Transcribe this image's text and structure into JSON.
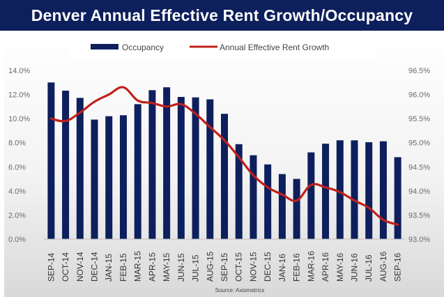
{
  "title": "Denver Annual Effective Rent Growth/Occupancy",
  "legend": {
    "occupancy_label": "Occupancy",
    "rent_label": "Annual Effective Rent Growth"
  },
  "source": "Source: Axiometrics",
  "colors": {
    "title_bg": "#0d1f5c",
    "bar": "#0d1f5c",
    "line": "#c0201b"
  },
  "chart_data": {
    "type": "bar+line",
    "title": "Denver Annual Effective Rent Growth/Occupancy",
    "categories": [
      "SEP-14",
      "OCT-14",
      "NOV-14",
      "DEC-14",
      "JAN-15",
      "FEB-15",
      "MAR-15",
      "APR-15",
      "MAY-15",
      "JUN-15",
      "JUL-15",
      "AUG-15",
      "SEP-15",
      "OCT-15",
      "NOV-15",
      "DEC-15",
      "JAN-16",
      "FEB-16",
      "MAR-16",
      "APR-16",
      "MAY-16",
      "JUN-16",
      "JUL-16",
      "AUG-16",
      "SEP-16"
    ],
    "series": [
      {
        "name": "Occupancy",
        "type": "bar",
        "axis": "right",
        "values": [
          96.25,
          96.08,
          95.93,
          95.48,
          95.55,
          95.57,
          95.8,
          96.09,
          96.15,
          95.95,
          95.94,
          95.9,
          95.6,
          94.97,
          94.74,
          94.55,
          94.35,
          94.25,
          94.8,
          94.98,
          95.05,
          95.05,
          95.01,
          95.03,
          94.7
        ]
      },
      {
        "name": "Annual Effective Rent Growth",
        "type": "line",
        "axis": "left",
        "values": [
          10.0,
          9.8,
          10.5,
          11.4,
          12.0,
          12.6,
          11.5,
          11.3,
          11.0,
          11.2,
          10.4,
          9.3,
          8.2,
          6.8,
          5.3,
          4.3,
          3.7,
          3.2,
          4.5,
          4.3,
          3.9,
          3.2,
          2.6,
          1.6,
          1.2
        ]
      }
    ],
    "y_left": {
      "min": 0,
      "max": 14,
      "ticks": [
        "0.0%",
        "2.0%",
        "4.0%",
        "6.0%",
        "8.0%",
        "10.0%",
        "12.0%",
        "14.0%"
      ]
    },
    "y_right": {
      "min": 93.0,
      "max": 96.5,
      "ticks": [
        "93.0%",
        "93.5%",
        "94.0%",
        "94.5%",
        "95.0%",
        "95.5%",
        "96.0%",
        "96.5%"
      ]
    },
    "legend_position": "top",
    "grid": false
  }
}
